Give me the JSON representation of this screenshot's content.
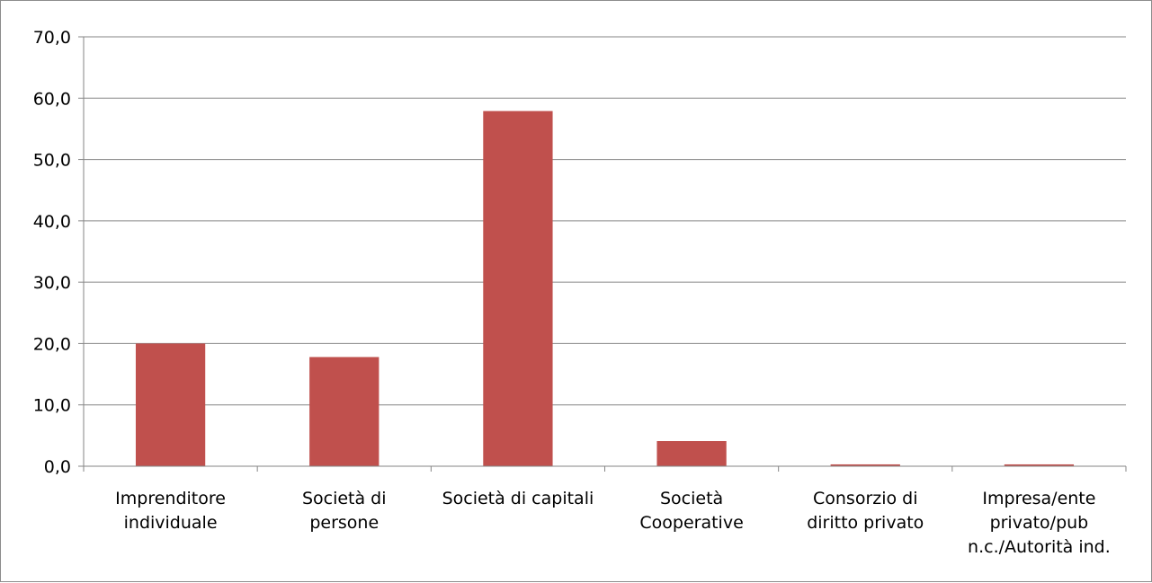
{
  "chart_data": {
    "type": "bar",
    "title": "",
    "xlabel": "",
    "ylabel": "",
    "ylim": [
      0,
      70
    ],
    "y_ticks": [
      "0,0",
      "10,0",
      "20,0",
      "30,0",
      "40,0",
      "50,0",
      "60,0",
      "70,0"
    ],
    "y_tick_values": [
      0,
      10,
      20,
      30,
      40,
      50,
      60,
      70
    ],
    "grid": true,
    "legend": "none",
    "bar_color": "#C0504D",
    "categories": [
      [
        "Imprenditore",
        "individuale"
      ],
      [
        "Società di",
        "persone"
      ],
      [
        "Società di capitali"
      ],
      [
        "Società",
        "Cooperative"
      ],
      [
        "Consorzio di",
        "diritto privato"
      ],
      [
        "Impresa/ente",
        "privato/pub",
        "n.c./Autorità ind."
      ]
    ],
    "values": [
      20.0,
      17.8,
      57.9,
      4.1,
      0.3,
      0.3
    ]
  }
}
